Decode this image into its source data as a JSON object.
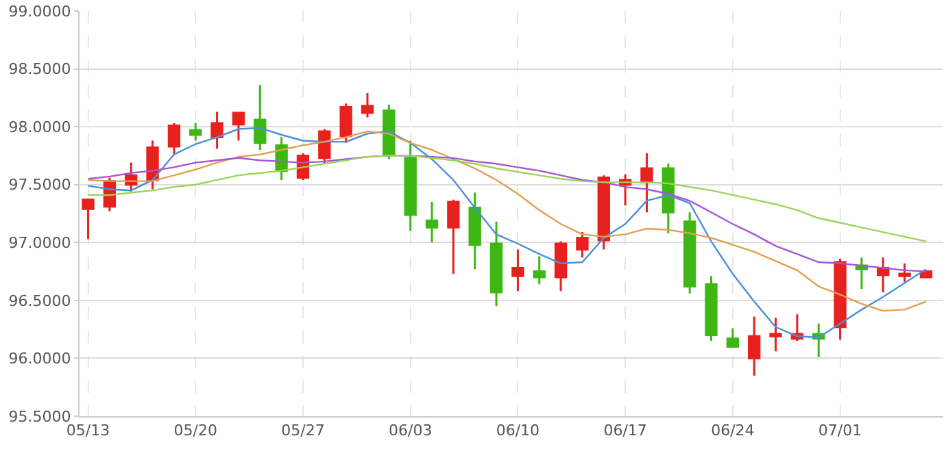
{
  "chart_data": {
    "type": "candlestick",
    "categories": [
      "05/13",
      null,
      null,
      null,
      null,
      "05/20",
      null,
      null,
      null,
      null,
      "05/27",
      null,
      null,
      null,
      null,
      "06/03",
      null,
      null,
      null,
      null,
      "06/10",
      null,
      null,
      null,
      null,
      "06/17",
      null,
      null,
      null,
      null,
      "06/24",
      null,
      null,
      null,
      null,
      "07/01",
      null,
      null,
      null,
      null
    ],
    "ylim": [
      95.5,
      99.0
    ],
    "yticks": [
      {
        "value": 95.5,
        "label": "95.5000"
      },
      {
        "value": 96.0,
        "label": "96.0000"
      },
      {
        "value": 96.5,
        "label": "96.5000"
      },
      {
        "value": 97.0,
        "label": "97.0000"
      },
      {
        "value": 97.5,
        "label": "97.5000"
      },
      {
        "value": 98.0,
        "label": "98.0000"
      },
      {
        "value": 98.5,
        "label": "98.5000"
      },
      {
        "value": 99.0,
        "label": "99.0000"
      }
    ],
    "grid": true,
    "series": [
      {
        "type": "line",
        "color": "#4a90d9",
        "values": [
          97.49,
          97.46,
          97.45,
          97.54,
          97.76,
          97.85,
          97.91,
          97.98,
          97.99,
          97.93,
          97.88,
          97.87,
          97.87,
          97.94,
          97.96,
          97.86,
          97.72,
          97.54,
          97.3,
          97.07,
          96.99,
          96.9,
          96.82,
          96.83,
          97.04,
          97.16,
          97.36,
          97.41,
          97.34,
          97.01,
          96.73,
          96.49,
          96.27,
          96.19,
          96.18,
          96.3,
          96.42,
          96.53,
          96.65,
          96.77
        ]
      },
      {
        "type": "line",
        "color": "#e0a050",
        "values": [
          97.54,
          97.53,
          97.53,
          97.53,
          97.58,
          97.63,
          97.69,
          97.74,
          97.76,
          97.8,
          97.84,
          97.87,
          97.91,
          97.96,
          97.94,
          97.86,
          97.8,
          97.72,
          97.64,
          97.54,
          97.42,
          97.28,
          97.16,
          97.07,
          97.05,
          97.07,
          97.12,
          97.11,
          97.08,
          97.04,
          96.98,
          96.92,
          96.84,
          96.76,
          96.62,
          96.55,
          96.47,
          96.41,
          96.42,
          96.49
        ]
      },
      {
        "type": "line",
        "color": "#a855d8",
        "values": [
          97.55,
          97.57,
          97.6,
          97.62,
          97.65,
          97.69,
          97.71,
          97.73,
          97.71,
          97.7,
          97.69,
          97.7,
          97.72,
          97.74,
          97.75,
          97.75,
          97.74,
          97.73,
          97.7,
          97.68,
          97.65,
          97.62,
          97.58,
          97.54,
          97.52,
          97.48,
          97.46,
          97.42,
          97.36,
          97.26,
          97.16,
          97.07,
          96.97,
          96.9,
          96.83,
          96.82,
          96.8,
          96.78,
          96.76,
          96.75
        ]
      },
      {
        "type": "line",
        "color": "#9bd45a",
        "values": [
          97.41,
          97.41,
          97.43,
          97.45,
          97.48,
          97.5,
          97.54,
          97.58,
          97.6,
          97.62,
          97.65,
          97.68,
          97.71,
          97.74,
          97.75,
          97.75,
          97.73,
          97.71,
          97.68,
          97.64,
          97.61,
          97.58,
          97.55,
          97.53,
          97.52,
          97.52,
          97.52,
          97.51,
          97.48,
          97.45,
          97.41,
          97.37,
          97.33,
          97.28,
          97.21,
          97.17,
          97.13,
          97.09,
          97.05,
          97.01
        ]
      },
      {
        "colors": [
          "#e8201e",
          "#e8201e",
          "#e8201e",
          "#e8201e",
          "#e8201e",
          "#3db714",
          "#e8201e",
          "#e8201e",
          "#3db714",
          "#3db714",
          "#e8201e",
          "#e8201e",
          "#e8201e",
          "#e8201e",
          "#3db714",
          "#3db714",
          "#3db714",
          "#e8201e",
          "#3db714",
          "#3db714",
          "#e8201e",
          "#3db714",
          "#e8201e",
          "#e8201e",
          "#e8201e",
          "#e8201e",
          "#e8201e",
          "#3db714",
          "#3db714",
          "#3db714",
          "#3db714",
          "#e8201e",
          "#e8201e",
          "#e8201e",
          "#3db714",
          "#e8201e",
          "#3db714",
          "#e8201e",
          "#e8201e",
          "#e8201e"
        ],
        "ohlc": [
          [
            97.29,
            97.38,
            97.03,
            97.37
          ],
          [
            97.31,
            97.56,
            97.27,
            97.53
          ],
          [
            97.5,
            97.69,
            97.44,
            97.58
          ],
          [
            97.54,
            97.88,
            97.46,
            97.82
          ],
          [
            97.83,
            98.03,
            97.76,
            98.01
          ],
          [
            97.97,
            98.03,
            97.88,
            97.93
          ],
          [
            97.91,
            98.13,
            97.81,
            98.03
          ],
          [
            98.02,
            98.12,
            97.88,
            98.12
          ],
          [
            98.06,
            98.36,
            97.8,
            97.86
          ],
          [
            97.84,
            97.91,
            97.54,
            97.62
          ],
          [
            97.56,
            97.77,
            97.54,
            97.75
          ],
          [
            97.73,
            97.98,
            97.68,
            97.96
          ],
          [
            97.92,
            98.2,
            97.86,
            98.17
          ],
          [
            98.12,
            98.29,
            98.08,
            98.18
          ],
          [
            98.14,
            98.19,
            97.72,
            97.76
          ],
          [
            97.73,
            97.88,
            97.1,
            97.24
          ],
          [
            97.19,
            97.35,
            97.0,
            97.13
          ],
          [
            97.13,
            97.37,
            96.73,
            97.35
          ],
          [
            97.3,
            97.43,
            96.77,
            96.98
          ],
          [
            96.99,
            97.18,
            96.45,
            96.57
          ],
          [
            96.71,
            96.94,
            96.58,
            96.78
          ],
          [
            96.75,
            96.88,
            96.64,
            96.7
          ],
          [
            96.7,
            97.01,
            96.58,
            96.99
          ],
          [
            96.94,
            97.09,
            96.87,
            97.04
          ],
          [
            97.02,
            97.58,
            96.94,
            97.56
          ],
          [
            97.5,
            97.59,
            97.32,
            97.54
          ],
          [
            97.52,
            97.77,
            97.26,
            97.64
          ],
          [
            97.64,
            97.68,
            97.08,
            97.26
          ],
          [
            97.18,
            97.26,
            96.56,
            96.62
          ],
          [
            96.64,
            96.71,
            96.15,
            96.2
          ],
          [
            96.17,
            96.26,
            96.1,
            96.1
          ],
          [
            96.0,
            96.36,
            95.85,
            96.19
          ],
          [
            96.19,
            96.35,
            96.06,
            96.21
          ],
          [
            96.17,
            96.38,
            96.15,
            96.21
          ],
          [
            96.21,
            96.3,
            96.01,
            96.17
          ],
          [
            96.27,
            96.86,
            96.16,
            96.83
          ],
          [
            96.8,
            96.87,
            96.6,
            96.77
          ],
          [
            96.72,
            96.87,
            96.57,
            96.78
          ],
          [
            96.71,
            96.82,
            96.66,
            96.73
          ],
          [
            96.7,
            96.75,
            96.7,
            96.75
          ]
        ]
      }
    ]
  }
}
